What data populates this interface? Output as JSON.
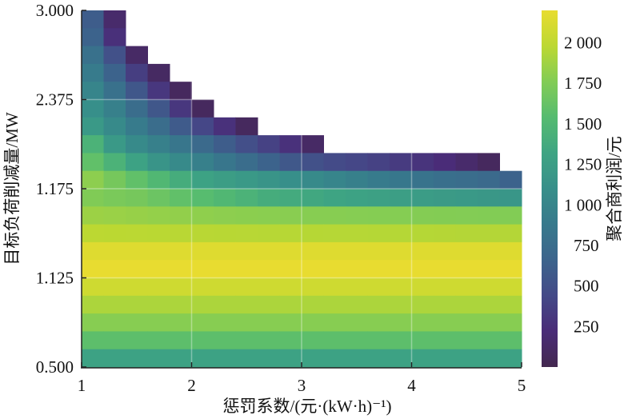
{
  "chart_data": {
    "type": "heatmap",
    "xlabel": "惩罚系数/(元·(kW·h)⁻¹)",
    "ylabel": "目标负荷削减量/MW",
    "colorbar_label": "聚合商利润/元",
    "xlim": [
      1,
      5
    ],
    "x_ticks": [
      "1",
      "2",
      "3",
      "4",
      "5"
    ],
    "x_cell_start": 1,
    "x_cell_step": 0.2,
    "y_ticks_top_to_bottom": [
      "3.000",
      "2.375",
      "1.175",
      "1.125",
      "0.500"
    ],
    "colorbar_range": [
      0,
      2200
    ],
    "colorbar_ticks": [
      "250",
      "500",
      "750",
      "1 000",
      "1 250",
      "1 500",
      "1 750",
      "2 000"
    ],
    "colorbar_tick_values": [
      250,
      500,
      750,
      1000,
      1250,
      1500,
      1750,
      2000
    ],
    "colormap": "viridis",
    "grid": true,
    "rows_top_to_bottom": [
      [
        600,
        150
      ],
      [
        650,
        250
      ],
      [
        800,
        500,
        120
      ],
      [
        900,
        650,
        350,
        100
      ],
      [
        1000,
        800,
        550,
        300,
        80
      ],
      [
        1100,
        950,
        750,
        550,
        300,
        80
      ],
      [
        1200,
        1050,
        900,
        750,
        580,
        420,
        260,
        80
      ],
      [
        1450,
        1200,
        1050,
        950,
        850,
        720,
        600,
        480,
        380,
        260,
        120
      ],
      [
        1600,
        1450,
        1300,
        1150,
        1050,
        950,
        850,
        750,
        650,
        560,
        500,
        450,
        420,
        380,
        330,
        280,
        220,
        150,
        80
      ],
      [
        1800,
        1700,
        1600,
        1500,
        1400,
        1300,
        1250,
        1200,
        1150,
        1100,
        1050,
        1000,
        950,
        900,
        860,
        820,
        780,
        750,
        720,
        650
      ],
      [
        1750,
        1720,
        1700,
        1650,
        1600,
        1550,
        1500,
        1450,
        1400,
        1380,
        1350,
        1320,
        1300,
        1280,
        1260,
        1240,
        1220,
        1200,
        1180,
        1170
      ],
      [
        1860,
        1850,
        1840,
        1830,
        1820,
        1810,
        1800,
        1795,
        1790,
        1785,
        1780,
        1778,
        1775,
        1772,
        1770,
        1768,
        1765,
        1763,
        1760,
        1760
      ],
      [
        1980,
        1978,
        1975,
        1972,
        1970,
        1968,
        1965,
        1963,
        1960,
        1960,
        1958,
        1957,
        1956,
        1955,
        1954,
        1953,
        1952,
        1951,
        1950,
        1950
      ],
      [
        2150,
        2150,
        2150,
        2150,
        2150,
        2150,
        2150,
        2150,
        2150,
        2150,
        2150,
        2150,
        2150,
        2150,
        2150,
        2150,
        2150,
        2150,
        2150,
        2150
      ],
      [
        2200,
        2200,
        2200,
        2200,
        2200,
        2200,
        2200,
        2200,
        2200,
        2200,
        2200,
        2200,
        2200,
        2200,
        2200,
        2200,
        2200,
        2200,
        2200,
        2200
      ],
      [
        2070,
        2070,
        2070,
        2070,
        2070,
        2070,
        2070,
        2070,
        2070,
        2070,
        2070,
        2070,
        2070,
        2070,
        2070,
        2070,
        2070,
        2070,
        2070,
        2070
      ],
      [
        1920,
        1920,
        1920,
        1920,
        1920,
        1920,
        1920,
        1920,
        1920,
        1920,
        1920,
        1920,
        1920,
        1920,
        1920,
        1920,
        1920,
        1920,
        1920,
        1920
      ],
      [
        1780,
        1780,
        1780,
        1780,
        1780,
        1780,
        1780,
        1780,
        1780,
        1780,
        1780,
        1780,
        1780,
        1780,
        1780,
        1780,
        1780,
        1780,
        1780,
        1780
      ],
      [
        1580,
        1580,
        1580,
        1580,
        1580,
        1580,
        1580,
        1580,
        1580,
        1580,
        1580,
        1580,
        1580,
        1580,
        1580,
        1580,
        1580,
        1580,
        1580,
        1580
      ],
      [
        1300,
        1300,
        1300,
        1300,
        1300,
        1300,
        1300,
        1300,
        1300,
        1300,
        1300,
        1300,
        1300,
        1300,
        1300,
        1300,
        1300,
        1300,
        1300,
        1300
      ]
    ]
  }
}
